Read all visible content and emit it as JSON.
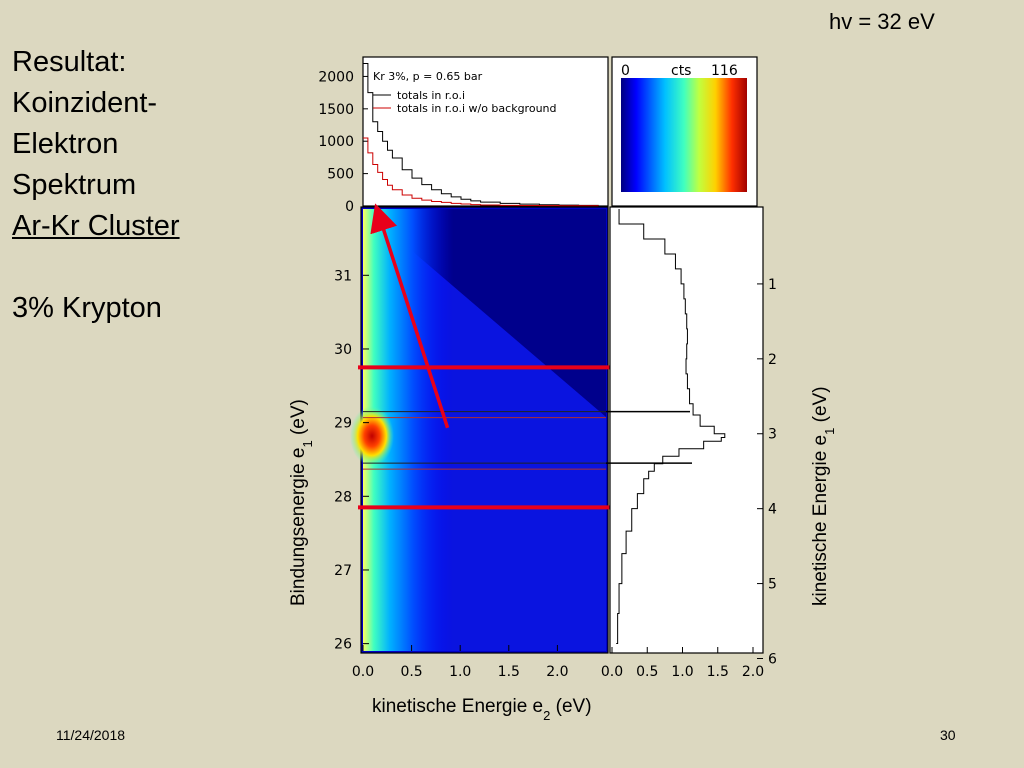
{
  "slide": {
    "photon_energy": "hv = 32 eV",
    "heading": [
      "Resultat:",
      "Koinzident-",
      "Elektron",
      "Spektrum"
    ],
    "subheading": "Ar-Kr Cluster",
    "sample": "3% Krypton",
    "date": "11/24/2018",
    "page": "30"
  },
  "chart_data": [
    {
      "type": "line",
      "panel": "top projection",
      "xlabel": "",
      "ylabel": "",
      "x_range": [
        0.0,
        2.5
      ],
      "ylim": [
        0,
        2300
      ],
      "yticks": [
        "0",
        "500",
        "1000",
        "1500",
        "2000"
      ],
      "legend": {
        "title": "Kr 3%, p = 0.65 bar",
        "entries": [
          "totals in r.o.i",
          "totals in r.o.i w/o background"
        ],
        "position": "top-left"
      },
      "series": [
        {
          "name": "totals in r.o.i",
          "color": "#000000",
          "x": [
            0.0,
            0.05,
            0.1,
            0.15,
            0.2,
            0.25,
            0.3,
            0.4,
            0.5,
            0.6,
            0.7,
            0.8,
            0.9,
            1.0,
            1.1,
            1.2,
            1.4,
            1.6,
            1.8,
            2.0,
            2.2,
            2.4
          ],
          "y": [
            2200,
            1750,
            1300,
            1150,
            1000,
            860,
            740,
            560,
            430,
            330,
            250,
            190,
            140,
            105,
            80,
            60,
            40,
            28,
            20,
            14,
            10,
            8
          ]
        },
        {
          "name": "totals in r.o.i w/o background",
          "color": "#cc0000",
          "x": [
            0.0,
            0.05,
            0.1,
            0.15,
            0.2,
            0.25,
            0.3,
            0.4,
            0.5,
            0.6,
            0.7,
            0.8,
            0.9,
            1.0,
            1.1,
            1.2,
            1.4,
            1.6,
            1.8,
            2.0,
            2.2,
            2.4
          ],
          "y": [
            1050,
            820,
            640,
            520,
            410,
            320,
            250,
            170,
            120,
            90,
            70,
            55,
            40,
            30,
            22,
            16,
            10,
            7,
            5,
            4,
            3,
            2
          ]
        }
      ]
    },
    {
      "type": "heatmap",
      "panel": "main",
      "xlabel": "kinetische Energie e",
      "xlabel_sub": "2",
      "xlabel_unit": " (eV)",
      "ylabel": "Bindungsenergie e",
      "ylabel_sub": "1",
      "ylabel_unit": " (eV)",
      "x_range": [
        0.0,
        2.5
      ],
      "y_range": [
        25.9,
        31.9
      ],
      "xticks": [
        "0.0",
        "0.5",
        "1.0",
        "1.5",
        "2.0"
      ],
      "yticks": [
        "26",
        "27",
        "28",
        "29",
        "30",
        "31"
      ],
      "annotations": {
        "roi_lines_red_binding_eV": [
          29.75,
          27.85
        ],
        "peak_lines_black_binding_eV": [
          29.15,
          28.45
        ],
        "arrow": {
          "from": {
            "x": 0.87,
            "y": 28.93
          },
          "to": {
            "x": 0.18,
            "y": 31.75
          }
        }
      }
    },
    {
      "type": "line",
      "panel": "right projection",
      "xlabel": "",
      "ylabel": "kinetische Energie e",
      "ylabel_sub": "1",
      "ylabel_unit": " (eV)",
      "x_range": [
        0.0,
        2.0
      ],
      "y_range": [
        0.0,
        5.9
      ],
      "xticks": [
        "0.0",
        "0.5",
        "1.0",
        "1.5",
        "2.0"
      ],
      "yticks": [
        "1",
        "2",
        "3",
        "4",
        "5",
        "6"
      ],
      "series": [
        {
          "name": "",
          "color": "#000000",
          "y": [
            0.0,
            0.2,
            0.4,
            0.6,
            0.8,
            1.0,
            1.2,
            1.4,
            1.6,
            1.8,
            2.0,
            2.2,
            2.4,
            2.6,
            2.75,
            2.9,
            3.0,
            3.05,
            3.1,
            3.2,
            3.3,
            3.4,
            3.5,
            3.6,
            3.8,
            4.0,
            4.3,
            4.6,
            5.0,
            5.4,
            5.8
          ],
          "x": [
            0.1,
            0.45,
            0.75,
            0.9,
            0.98,
            1.02,
            1.04,
            1.06,
            1.07,
            1.06,
            1.05,
            1.07,
            1.1,
            1.15,
            1.25,
            1.45,
            1.6,
            1.55,
            1.3,
            0.95,
            0.72,
            0.6,
            0.52,
            0.45,
            0.36,
            0.28,
            0.2,
            0.14,
            0.1,
            0.08,
            0.06
          ]
        }
      ]
    },
    {
      "type": "heatmap",
      "panel": "colorbar",
      "labels": [
        "0",
        "cts",
        "116"
      ],
      "range": [
        0,
        116
      ]
    }
  ]
}
